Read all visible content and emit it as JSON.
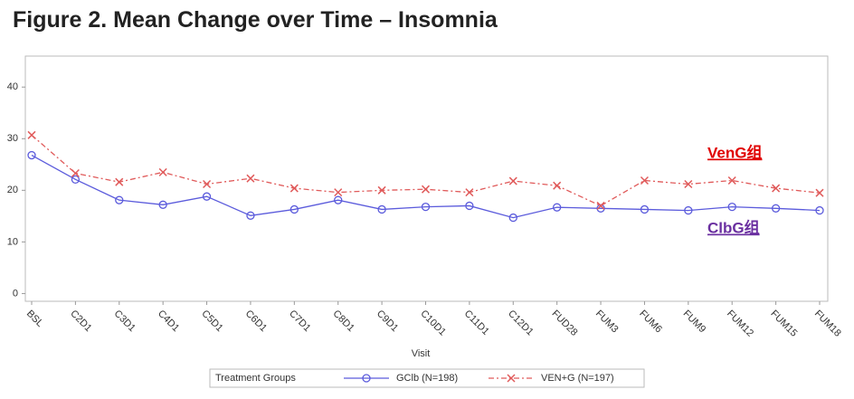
{
  "chart_data": {
    "type": "line",
    "title": "Figure 2. Mean Change over Time – Insomnia",
    "x_label": "Visit",
    "categories": [
      "BSL",
      "C2D1",
      "C3D1",
      "C4D1",
      "C5D1",
      "C6D1",
      "C7D1",
      "C8D1",
      "C9D1",
      "C10D1",
      "C11D1",
      "C12D1",
      "FUD28",
      "FUM3",
      "FUM6",
      "FUM9",
      "FUM12",
      "FUM15",
      "FUM18"
    ],
    "series": [
      {
        "name": "GClb (N=198)",
        "color": "#5b5bdc",
        "marker": "circle",
        "dashed": false,
        "values": [
          26.8,
          22.1,
          18.1,
          17.2,
          18.8,
          15.1,
          16.3,
          18.1,
          16.3,
          16.8,
          17.0,
          14.7,
          16.7,
          16.5,
          16.3,
          16.1,
          16.8,
          16.5,
          16.1
        ]
      },
      {
        "name": "VEN+G (N=197)",
        "color": "#e05a5a",
        "marker": "x",
        "dashed": true,
        "values": [
          30.7,
          23.3,
          21.6,
          23.5,
          21.2,
          22.3,
          20.4,
          19.6,
          20.0,
          20.2,
          19.6,
          21.8,
          20.9,
          17.0,
          21.9,
          21.2,
          21.9,
          20.4,
          19.5
        ]
      }
    ],
    "ylim": [
      -1.5,
      46
    ],
    "yticks": [
      0,
      10,
      20,
      30,
      40
    ],
    "legend_title": "Treatment Groups",
    "annotations": [
      "VenG组",
      "ClbG组"
    ]
  }
}
